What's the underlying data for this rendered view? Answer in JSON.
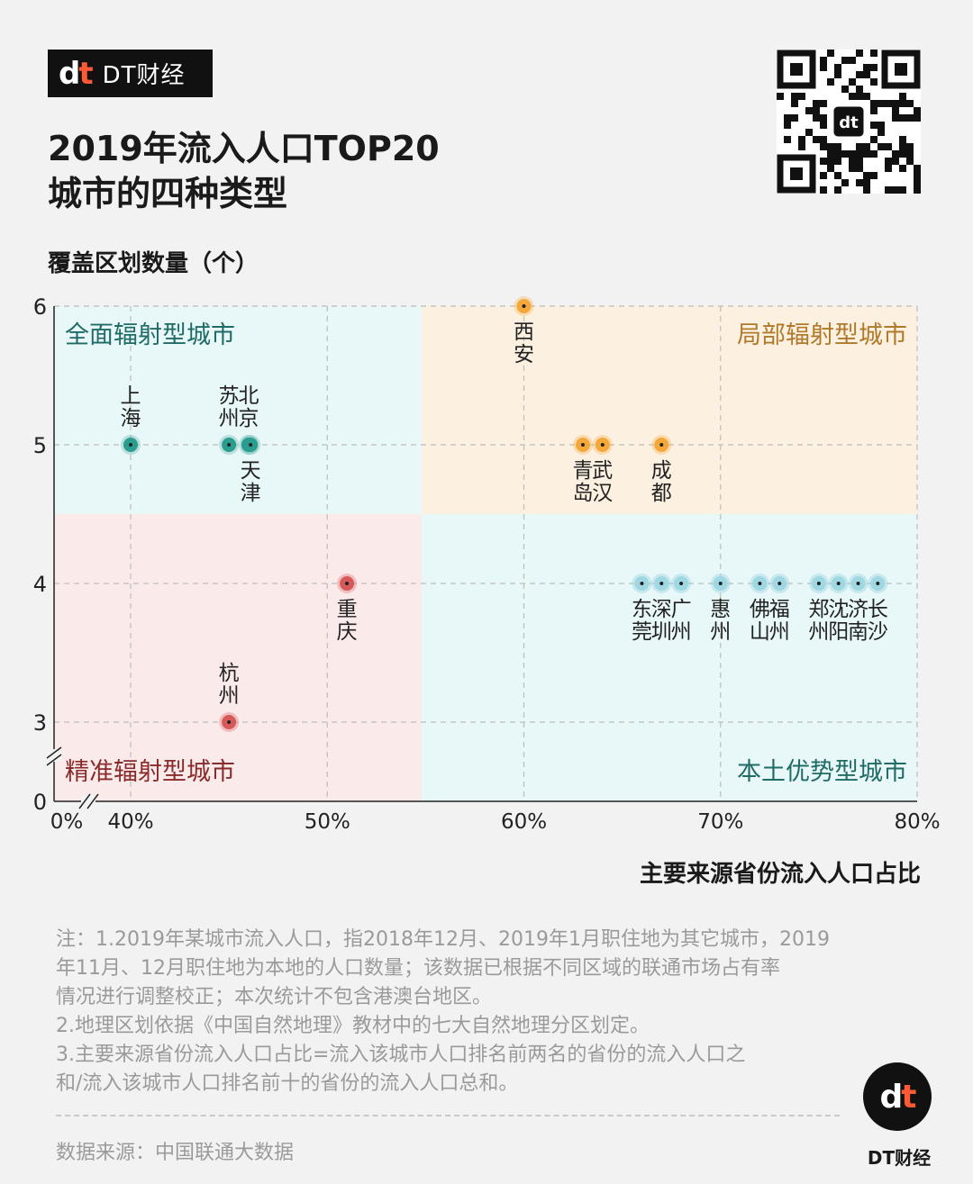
{
  "brand": {
    "mark": "dt",
    "name": "DT财经"
  },
  "title": "2019年流入人口TOP20\n城市的四种类型",
  "colors": {
    "teal": "#2a9d8f",
    "orange": "#f4a83a",
    "red": "#d65a5a",
    "lightblue": "#9fd8e3",
    "bg_teal": "#e8f7f7",
    "bg_orange": "#fcf0e1",
    "bg_red": "#fbeaea"
  },
  "quadrants": [
    {
      "label": "全面辐射型城市",
      "color": "#1f6b66"
    },
    {
      "label": "局部辐射型城市",
      "color": "#b07a2a"
    },
    {
      "label": "精准辐射型城市",
      "color": "#8a2b2b"
    },
    {
      "label": "本土优势型城市",
      "color": "#1f6b66"
    }
  ],
  "chart_data": {
    "type": "scatter",
    "ylabel": "覆盖区划数量（个）",
    "xlabel": "主要来源省份流入人口占比",
    "x_ticks": [
      "40%",
      "50%",
      "60%",
      "70%",
      "80%"
    ],
    "x_zero_label": "0%",
    "y_ticks": [
      "3",
      "4",
      "5",
      "6"
    ],
    "y_zero_label": "0",
    "xlim": [
      38,
      80
    ],
    "ylim": [
      2.4,
      6
    ],
    "quadrant_split": {
      "x": 54.8,
      "y": 4.5
    },
    "points": [
      {
        "city": "上海",
        "x": 40,
        "y": 5,
        "group": "全面辐射型城市"
      },
      {
        "city": "苏州",
        "x": 45,
        "y": 5,
        "group": "全面辐射型城市"
      },
      {
        "city": "北京",
        "x": 46,
        "y": 5,
        "group": "全面辐射型城市"
      },
      {
        "city": "天津",
        "x": 46.1,
        "y": 5,
        "group": "全面辐射型城市"
      },
      {
        "city": "西安",
        "x": 60,
        "y": 6,
        "group": "局部辐射型城市"
      },
      {
        "city": "青岛",
        "x": 63,
        "y": 5,
        "group": "局部辐射型城市"
      },
      {
        "city": "武汉",
        "x": 64,
        "y": 5,
        "group": "局部辐射型城市"
      },
      {
        "city": "成都",
        "x": 67,
        "y": 5,
        "group": "局部辐射型城市"
      },
      {
        "city": "重庆",
        "x": 51,
        "y": 4,
        "group": "精准辐射型城市"
      },
      {
        "city": "杭州",
        "x": 45,
        "y": 3,
        "group": "精准辐射型城市"
      },
      {
        "city": "东莞",
        "x": 66,
        "y": 4,
        "group": "本土优势型城市"
      },
      {
        "city": "深圳",
        "x": 67,
        "y": 4,
        "group": "本土优势型城市"
      },
      {
        "city": "广州",
        "x": 68,
        "y": 4,
        "group": "本土优势型城市"
      },
      {
        "city": "惠州",
        "x": 70,
        "y": 4,
        "group": "本土优势型城市"
      },
      {
        "city": "佛山",
        "x": 72,
        "y": 4,
        "group": "本土优势型城市"
      },
      {
        "city": "福州",
        "x": 73,
        "y": 4,
        "group": "本土优势型城市"
      },
      {
        "city": "郑州",
        "x": 75,
        "y": 4,
        "group": "本土优势型城市"
      },
      {
        "city": "沈阳",
        "x": 76,
        "y": 4,
        "group": "本土优势型城市"
      },
      {
        "city": "济南",
        "x": 77,
        "y": 4,
        "group": "本土优势型城市"
      },
      {
        "city": "长沙",
        "x": 78,
        "y": 4,
        "group": "本土优势型城市"
      }
    ]
  },
  "notes": [
    "注：1.2019年某城市流入人口，指2018年12月、2019年1月职住地为其它城市，2019\n年11月、12月职住地为本地的人口数量；该数据已根据不同区域的联通市场占有率\n情况进行调整校正；本次统计不包含港澳台地区。",
    "2.地理区划依据《中国自然地理》教材中的七大自然地理分区划定。",
    "3.主要来源省份流入人口占比=流入该城市人口排名前两名的省份的流入人口之\n和/流入该城市人口排名前十的省份的流入人口总和。"
  ],
  "source": "数据来源：中国联通大数据",
  "footer_logo": {
    "mark": "dt",
    "name": "DT财经"
  }
}
